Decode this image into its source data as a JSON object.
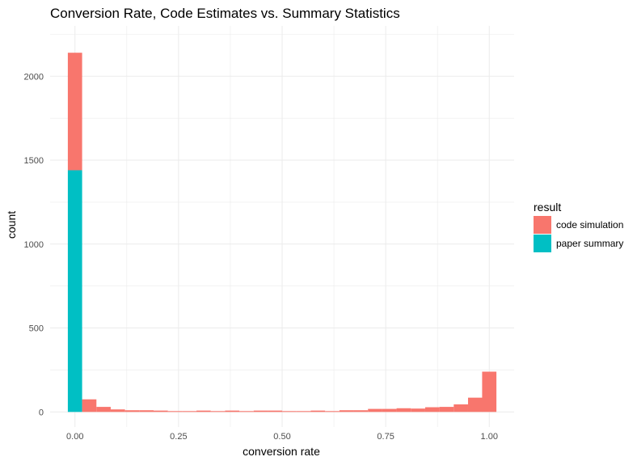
{
  "chart_data": {
    "type": "bar",
    "title": "Conversion Rate, Code Estimates vs. Summary Statistics",
    "xlabel": "conversion rate",
    "ylabel": "count",
    "xlim": [
      -0.06,
      1.06
    ],
    "ylim": [
      -90,
      2300
    ],
    "x_ticks": [
      0.0,
      0.25,
      0.5,
      0.75,
      1.0
    ],
    "x_tick_labels": [
      "0.00",
      "0.25",
      "0.50",
      "0.75",
      "1.00"
    ],
    "y_ticks": [
      0,
      500,
      1000,
      1500,
      2000
    ],
    "y_tick_labels": [
      "0",
      "500",
      "1000",
      "1500",
      "2000"
    ],
    "grid": true,
    "bin_width": 0.0345,
    "bin_centers": [
      0.0,
      0.0345,
      0.069,
      0.1035,
      0.138,
      0.1725,
      0.207,
      0.2415,
      0.276,
      0.3105,
      0.345,
      0.3795,
      0.414,
      0.4485,
      0.483,
      0.5175,
      0.552,
      0.5865,
      0.621,
      0.6555,
      0.69,
      0.7245,
      0.759,
      0.7935,
      0.828,
      0.8625,
      0.897,
      0.9315,
      0.966,
      1.0
    ],
    "series": [
      {
        "name": "code simulation",
        "color": "#F8766D",
        "values": [
          700,
          75,
          30,
          15,
          10,
          10,
          8,
          5,
          5,
          8,
          5,
          8,
          5,
          8,
          8,
          5,
          5,
          8,
          5,
          10,
          10,
          18,
          18,
          22,
          20,
          28,
          30,
          45,
          85,
          240
        ]
      },
      {
        "name": "paper summary",
        "color": "#00BFC4",
        "values": [
          1440,
          0,
          0,
          0,
          0,
          0,
          0,
          0,
          0,
          0,
          0,
          0,
          0,
          0,
          0,
          0,
          0,
          0,
          0,
          0,
          0,
          0,
          0,
          0,
          0,
          0,
          0,
          0,
          0,
          0
        ]
      }
    ],
    "stacked": true,
    "legend": {
      "title": "result",
      "position": "right",
      "entries": [
        "code simulation",
        "paper summary"
      ]
    },
    "colors": {
      "code simulation": "#F8766D",
      "paper summary": "#00BFC4",
      "grid": "#EBEBEB"
    }
  }
}
